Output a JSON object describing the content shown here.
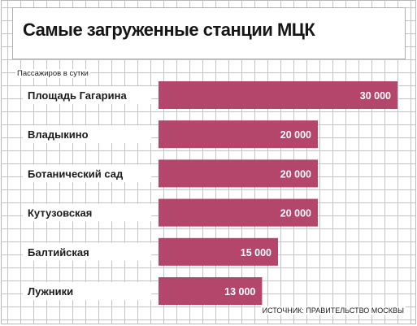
{
  "chart_data": {
    "type": "bar",
    "orientation": "horizontal",
    "title": "Самые загруженные станции МЦК",
    "unit_label": "Пассажиров в сутки",
    "source": "ИСТОЧНИК: ПРАВИТЕЛЬСТВО МОСКВЫ",
    "categories": [
      "Площадь Гагарина",
      "Владыкино",
      "Ботанический сад",
      "Кутузовская",
      "Балтийская",
      "Лужники"
    ],
    "values": [
      30000,
      20000,
      20000,
      20000,
      15000,
      13000
    ],
    "value_labels": [
      "30 000",
      "20 000",
      "20 000",
      "20 000",
      "15 000",
      "13 000"
    ],
    "xlim": [
      0,
      30000
    ],
    "grid": true,
    "legend": "none",
    "colors": {
      "bar": "#b5466b",
      "label_background": "#ffffff",
      "grid": "#c3c3c3"
    }
  }
}
